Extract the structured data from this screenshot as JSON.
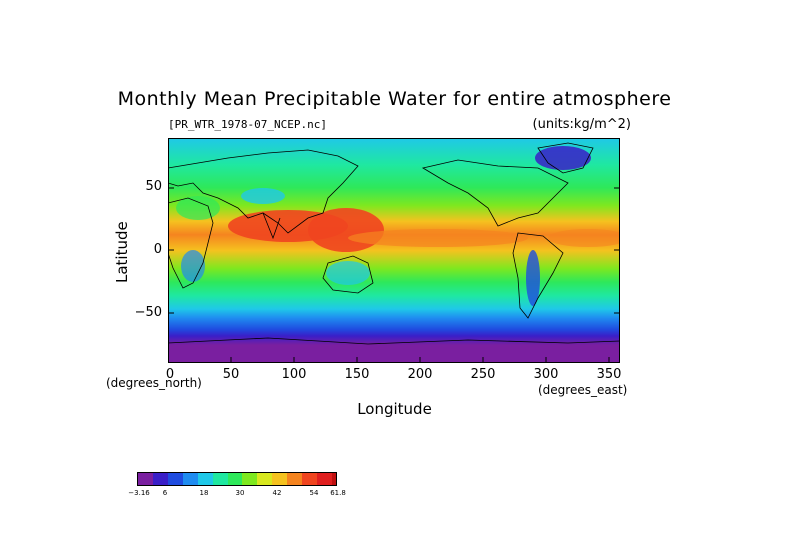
{
  "title": "Monthly Mean Precipitable Water for entire atmosphere",
  "file_label": "[PR_WTR_1978-07_NCEP.nc]",
  "units_label": "(units:kg/m^2)",
  "axes": {
    "y_title": "Latitude",
    "x_title": "Longitude",
    "y_unit": "(degrees_north)",
    "x_unit": "(degrees_east)",
    "y_ticks": [
      "50",
      "0",
      "−50"
    ],
    "x_ticks": [
      "0",
      "50",
      "100",
      "150",
      "200",
      "250",
      "300",
      "350"
    ]
  },
  "colorbar": {
    "labels": [
      "−3.16",
      "6",
      "18",
      "30",
      "42",
      "54",
      "61.8"
    ],
    "colors": [
      "#7a1fa0",
      "#3a1fc8",
      "#1f4ce0",
      "#1f8cf0",
      "#1fc8e8",
      "#1fe8a0",
      "#2ee85a",
      "#7ee81f",
      "#d8e81f",
      "#f5c21f",
      "#f5841f",
      "#f0451f",
      "#e01f1f",
      "#c01010"
    ]
  },
  "chart_data": {
    "type": "heatmap",
    "title": "Monthly Mean Precipitable Water for entire atmosphere",
    "xlabel": "Longitude",
    "ylabel": "Latitude",
    "xlim": [
      0,
      357.5
    ],
    "ylim": [
      -90,
      90
    ],
    "colorbar_range": [
      -3.16,
      61.8
    ],
    "zonal_mean_by_lat": [
      {
        "lat": 85,
        "value": 14
      },
      {
        "lat": 70,
        "value": 18
      },
      {
        "lat": 50,
        "value": 24
      },
      {
        "lat": 30,
        "value": 34
      },
      {
        "lat": 15,
        "value": 48
      },
      {
        "lat": 5,
        "value": 46
      },
      {
        "lat": -10,
        "value": 34
      },
      {
        "lat": -30,
        "value": 22
      },
      {
        "lat": -50,
        "value": 12
      },
      {
        "lat": -65,
        "value": 6
      },
      {
        "lat": -80,
        "value": 1
      }
    ]
  }
}
